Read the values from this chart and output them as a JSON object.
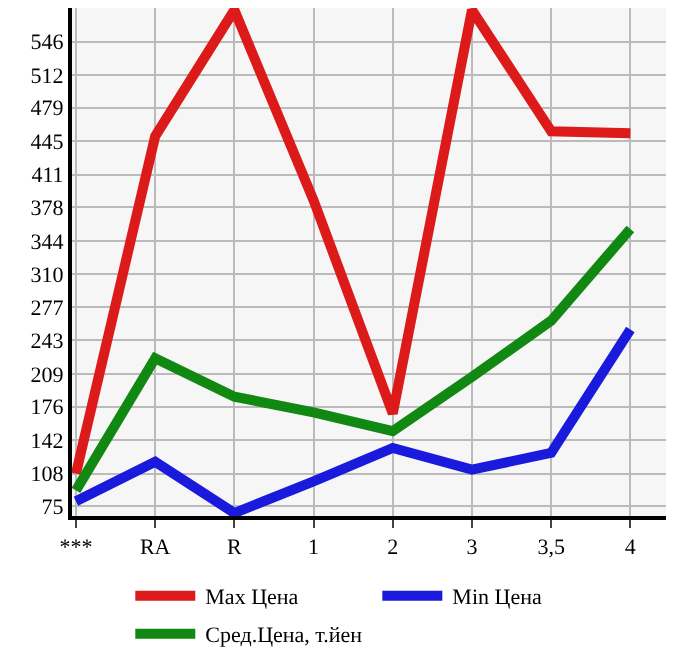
{
  "chart_data": {
    "type": "line",
    "categories": [
      "***",
      "RA",
      "R",
      "1",
      "2",
      "3",
      "3,5",
      "4"
    ],
    "series": [
      {
        "name": "Max Цена",
        "color": "#dd1a1a",
        "values": [
          108,
          450,
          578,
          385,
          169,
          578,
          455,
          453
        ]
      },
      {
        "name": "Min Цена",
        "color": "#1a1add",
        "values": [
          80,
          120,
          68,
          100,
          134,
          112,
          129,
          254
        ]
      },
      {
        "name": "Сред.Цена, т.йен",
        "color": "#118811",
        "values": [
          91,
          225,
          186,
          170,
          151,
          206,
          263,
          356
        ]
      }
    ],
    "ylim": [
      65,
      580
    ],
    "yticks": [
      75,
      108,
      142,
      176,
      209,
      243,
      277,
      310,
      344,
      378,
      411,
      445,
      479,
      512,
      546
    ],
    "grid": true,
    "legend": "bottom",
    "marker": "none",
    "line_style": "solid"
  }
}
